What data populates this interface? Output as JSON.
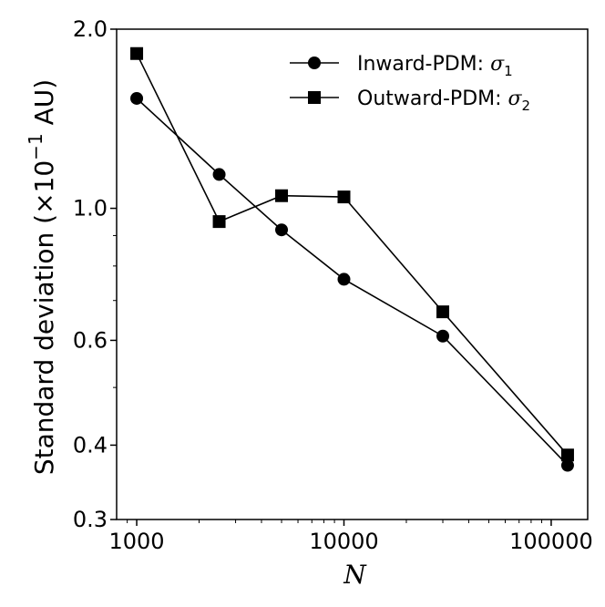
{
  "chart_data": {
    "type": "line",
    "title": "",
    "xlabel": "N",
    "ylabel_prefix": "Standard deviation (×10",
    "ylabel_exp": "−1",
    "ylabel_suffix": " AU)",
    "xscale": "log",
    "yscale": "log",
    "xlim": [
      800,
      150000
    ],
    "ylim": [
      0.3,
      2.0
    ],
    "xticks": [
      {
        "value": 1000,
        "label": "1000"
      },
      {
        "value": 10000,
        "label": "10000"
      },
      {
        "value": 100000,
        "label": "100000"
      }
    ],
    "yticks": [
      {
        "value": 0.3,
        "label": "0.3"
      },
      {
        "value": 0.4,
        "label": "0.4"
      },
      {
        "value": 0.6,
        "label": "0.6"
      },
      {
        "value": 1.0,
        "label": "1.0"
      },
      {
        "value": 2.0,
        "label": "2.0"
      }
    ],
    "y_minor_ticks": [
      0.5,
      0.7,
      0.8,
      0.9
    ],
    "x": [
      1000,
      2500,
      5000,
      10000,
      30000,
      120000
    ],
    "series": [
      {
        "name": "Inward-PDM",
        "symbol": "σ",
        "subscript": "1",
        "marker": "circle",
        "values": [
          1.53,
          1.14,
          0.92,
          0.76,
          0.61,
          0.37
        ]
      },
      {
        "name": "Outward-PDM",
        "symbol": "σ",
        "subscript": "2",
        "marker": "square",
        "values": [
          1.82,
          0.95,
          1.05,
          1.045,
          0.67,
          0.385
        ]
      }
    ],
    "legend_position": "top-right",
    "grid": false,
    "colors": {
      "line": "#000000",
      "marker": "#000000",
      "background": "#ffffff"
    }
  }
}
